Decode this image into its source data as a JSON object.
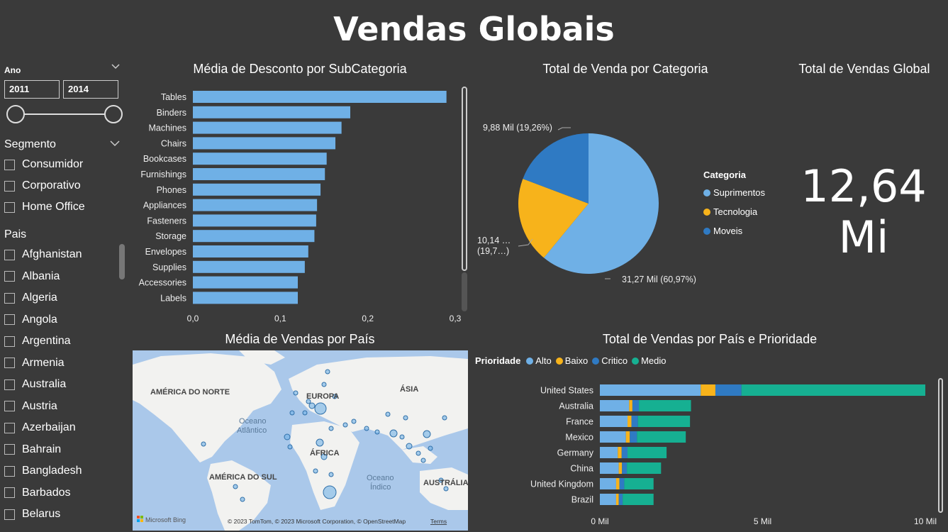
{
  "title": "Vendas Globais",
  "year_slicer": {
    "label": "Ano",
    "start": "2011",
    "end": "2014"
  },
  "segment_slicer": {
    "label": "Segmento",
    "items": [
      "Consumidor",
      "Corporativo",
      "Home Office"
    ]
  },
  "country_slicer": {
    "label": "Pais",
    "items": [
      "Afghanistan",
      "Albania",
      "Algeria",
      "Angola",
      "Argentina",
      "Armenia",
      "Australia",
      "Austria",
      "Azerbaijan",
      "Bahrain",
      "Bangladesh",
      "Barbados",
      "Belarus"
    ]
  },
  "discount_chart": {
    "title": "Média de Desconto por SubCategoria",
    "chart_data": {
      "type": "bar",
      "orientation": "horizontal",
      "categories": [
        "Tables",
        "Binders",
        "Machines",
        "Chairs",
        "Bookcases",
        "Furnishings",
        "Phones",
        "Appliances",
        "Fasteners",
        "Storage",
        "Envelopes",
        "Supplies",
        "Accessories",
        "Labels"
      ],
      "values": [
        0.29,
        0.18,
        0.17,
        0.163,
        0.153,
        0.151,
        0.146,
        0.142,
        0.141,
        0.139,
        0.132,
        0.128,
        0.12,
        0.12
      ],
      "xlim": [
        0,
        0.3
      ],
      "ticks": [
        "0,0",
        "0,1",
        "0,2",
        "0,3"
      ],
      "color": "#6fb0e6"
    }
  },
  "category_chart": {
    "title": "Total de Venda por Categoria",
    "legend_title": "Categoria",
    "chart_data": {
      "type": "pie",
      "slices": [
        {
          "name": "Suprimentos",
          "value": 60.97,
          "label": "31,27 Mil (60,97%)",
          "color": "#6fb0e6"
        },
        {
          "name": "Tecnologia",
          "value": 19.77,
          "label": "10,14 …",
          "label2": "(19,7…)",
          "color": "#f7b31b"
        },
        {
          "name": "Moveis",
          "value": 19.26,
          "label": "9,88 Mil (19,26%)",
          "color": "#2f7ac3"
        }
      ]
    }
  },
  "kpi": {
    "title": "Total de Vendas Global",
    "value": "12,64",
    "unit": "Mi"
  },
  "map_chart": {
    "title": "Média de Vendas por País",
    "labels": {
      "na": "AMÉRICA DO NORTE",
      "eu": "EUROPA",
      "as": "ÁSIA",
      "af": "ÁFRICA",
      "sa": "AMÉRICA DO SUL",
      "au": "AUSTRÁLIA",
      "atl1": "Oceano",
      "atl2": "Atlântico",
      "ind1": "Oceano",
      "ind2": "Índico"
    },
    "brand": "Microsoft Bing",
    "copyright": "© 2023 TomTom, © 2023 Microsoft Corporation, © OpenStreetMap",
    "terms": "Terms"
  },
  "priority_chart": {
    "title": "Total de Vendas por País e Prioridade",
    "legend_title": "Prioridade",
    "chart_data": {
      "type": "bar",
      "orientation": "horizontal",
      "stacked": true,
      "categories": [
        "United States",
        "Australia",
        "France",
        "Mexico",
        "Germany",
        "China",
        "United Kingdom",
        "Brazil"
      ],
      "series": [
        {
          "name": "Alto",
          "color": "#6fb0e6",
          "values": [
            3.1,
            0.9,
            0.85,
            0.8,
            0.55,
            0.58,
            0.5,
            0.5
          ]
        },
        {
          "name": "Baixo",
          "color": "#f7b31b",
          "values": [
            0.45,
            0.1,
            0.12,
            0.12,
            0.12,
            0.1,
            0.1,
            0.08
          ]
        },
        {
          "name": "Critico",
          "color": "#2f7ac3",
          "values": [
            0.8,
            0.2,
            0.2,
            0.22,
            0.18,
            0.15,
            0.15,
            0.12
          ]
        },
        {
          "name": "Medio",
          "color": "#16b092",
          "values": [
            5.65,
            1.6,
            1.6,
            1.5,
            1.2,
            1.05,
            0.9,
            0.95
          ]
        }
      ],
      "xlim": [
        0,
        10
      ],
      "ticks": [
        "0 Mil",
        "5 Mil",
        "10 Mil"
      ]
    }
  }
}
